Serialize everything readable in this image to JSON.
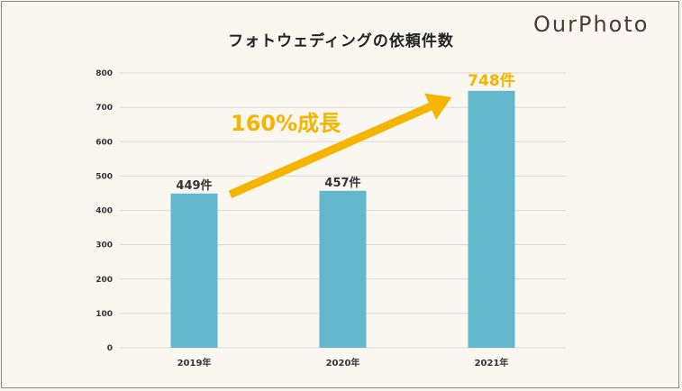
{
  "brand": {
    "logo_text": "OurPhoto"
  },
  "chart_data": {
    "type": "bar",
    "title": "フォトウェディングの依頼件数",
    "categories": [
      "2019年",
      "2020年",
      "2021年"
    ],
    "values": [
      449,
      457,
      748
    ],
    "data_labels": [
      "449件",
      "457件",
      "748件"
    ],
    "ylim": [
      0,
      800
    ],
    "yticks": [
      0,
      100,
      200,
      300,
      400,
      500,
      600,
      700,
      800
    ],
    "grid": true,
    "xlabel": "",
    "ylabel": "",
    "annotation": {
      "text": "160%成長",
      "from_category": "2019年",
      "to_category": "2021年"
    },
    "colors": {
      "bar": "#62b7cb",
      "highlight": "#f5b400",
      "grid": "#d9d9d9"
    }
  }
}
